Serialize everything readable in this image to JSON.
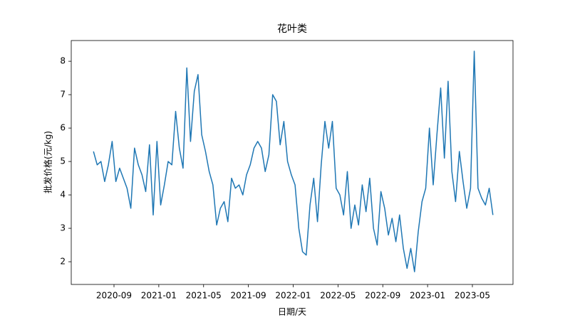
{
  "chart_data": {
    "type": "line",
    "title": "花叶类",
    "xlabel": "日期/天",
    "ylabel": "批发价格(元/kg)",
    "color": "#1f77b4",
    "x": [
      "2020-07",
      "2020-07",
      "2020-07",
      "2020-08",
      "2020-08",
      "2020-08",
      "2020-09",
      "2020-09",
      "2020-09",
      "2020-10",
      "2020-10",
      "2020-10",
      "2020-11",
      "2020-11",
      "2020-11",
      "2020-12",
      "2020-12",
      "2020-12",
      "2021-01",
      "2021-01",
      "2021-01",
      "2021-02",
      "2021-02",
      "2021-02",
      "2021-03",
      "2021-03",
      "2021-03",
      "2021-04",
      "2021-04",
      "2021-04",
      "2021-05",
      "2021-05",
      "2021-05",
      "2021-06",
      "2021-06",
      "2021-06",
      "2021-07",
      "2021-07",
      "2021-07",
      "2021-08",
      "2021-08",
      "2021-08",
      "2021-09",
      "2021-09",
      "2021-09",
      "2021-10",
      "2021-10",
      "2021-10",
      "2021-11",
      "2021-11",
      "2021-11",
      "2021-12",
      "2021-12",
      "2021-12",
      "2022-01",
      "2022-01",
      "2022-01",
      "2022-02",
      "2022-02",
      "2022-02",
      "2022-03",
      "2022-03",
      "2022-03",
      "2022-04",
      "2022-04",
      "2022-04",
      "2022-05",
      "2022-05",
      "2022-05",
      "2022-06",
      "2022-06",
      "2022-06",
      "2022-07",
      "2022-07",
      "2022-07",
      "2022-08",
      "2022-08",
      "2022-08",
      "2022-09",
      "2022-09",
      "2022-09",
      "2022-10",
      "2022-10",
      "2022-10",
      "2022-11",
      "2022-11",
      "2022-11",
      "2022-12",
      "2022-12",
      "2022-12",
      "2023-01",
      "2023-01",
      "2023-01",
      "2023-02",
      "2023-02",
      "2023-02",
      "2023-03",
      "2023-03",
      "2023-03",
      "2023-04",
      "2023-04",
      "2023-04",
      "2023-05",
      "2023-05",
      "2023-05",
      "2023-06",
      "2023-06",
      "2023-06"
    ],
    "values": [
      5.3,
      4.9,
      5.0,
      4.4,
      4.9,
      5.6,
      4.4,
      4.8,
      4.5,
      4.2,
      3.6,
      5.4,
      4.9,
      4.6,
      4.1,
      5.5,
      3.4,
      5.6,
      3.7,
      4.3,
      5.0,
      4.9,
      6.5,
      5.4,
      4.8,
      7.8,
      5.6,
      7.1,
      7.6,
      5.8,
      5.3,
      4.7,
      4.3,
      3.1,
      3.6,
      3.8,
      3.2,
      4.5,
      4.2,
      4.3,
      4.0,
      4.6,
      4.9,
      5.4,
      5.6,
      5.4,
      4.7,
      5.2,
      7.0,
      6.8,
      5.5,
      6.2,
      5.0,
      4.6,
      4.3,
      3.0,
      2.3,
      2.2,
      3.7,
      4.5,
      3.2,
      4.9,
      6.2,
      5.4,
      6.2,
      4.2,
      4.0,
      3.4,
      4.7,
      3.0,
      3.7,
      3.1,
      4.3,
      3.5,
      4.5,
      3.0,
      2.5,
      4.1,
      3.6,
      2.8,
      3.3,
      2.6,
      3.4,
      2.4,
      1.8,
      2.4,
      1.7,
      2.9,
      3.8,
      4.2,
      6.0,
      4.3,
      5.8,
      7.2,
      5.1,
      7.4,
      4.7,
      3.8,
      5.3,
      4.4,
      3.6,
      4.2,
      8.3,
      4.2,
      3.9,
      3.7,
      4.2,
      3.4
    ],
    "xticks": [
      "2020-09",
      "2021-01",
      "2021-05",
      "2021-09",
      "2022-01",
      "2022-05",
      "2022-09",
      "2023-01",
      "2023-05"
    ],
    "ylim": [
      1.32,
      8.62
    ],
    "yticks": [
      2,
      3,
      4,
      5,
      6,
      7,
      8
    ]
  }
}
